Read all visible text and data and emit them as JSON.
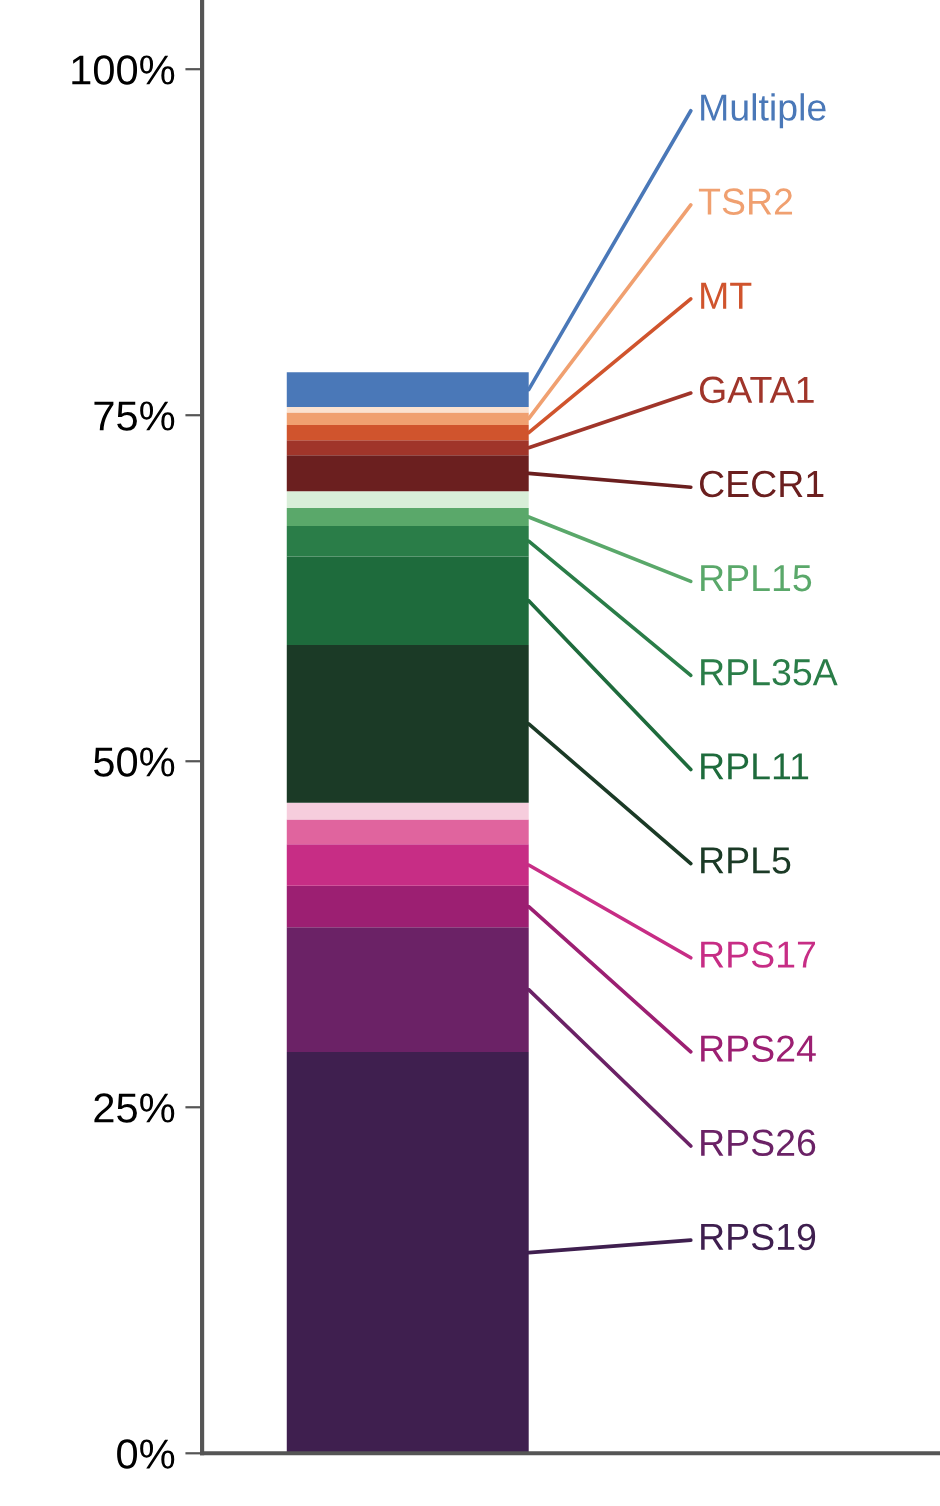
{
  "chart_data": {
    "type": "bar",
    "stacked": true,
    "categories": [
      null
    ],
    "series": [
      {
        "name": "RPS19",
        "color": "#3f1f4f",
        "values": [
          29
        ]
      },
      {
        "name": "RPS26",
        "color": "#6b2266",
        "values": [
          9
        ]
      },
      {
        "name": "RPS24",
        "color": "#9c1f72",
        "values": [
          3
        ]
      },
      {
        "name": "RPS17",
        "color": "#c72d85",
        "values": [
          3
        ]
      },
      {
        "color": "#e0649e",
        "values": [
          1.8
        ]
      },
      {
        "color": "#f6cddd",
        "values": [
          1.2
        ]
      },
      {
        "name": "RPL5",
        "color": "#1b3a26",
        "values": [
          11.4
        ]
      },
      {
        "name": "RPL11",
        "color": "#1e6b3c",
        "values": [
          6.4
        ]
      },
      {
        "name": "RPL35A",
        "color": "#2a7d48",
        "values": [
          2.2
        ]
      },
      {
        "name": "RPL15",
        "color": "#5aa86a",
        "values": [
          1.3
        ]
      },
      {
        "color": "#d8eed8",
        "values": [
          1.2
        ]
      },
      {
        "name": "CECR1",
        "color": "#6b1f1f",
        "values": [
          2.6
        ]
      },
      {
        "name": "GATA1",
        "color": "#a0352a",
        "values": [
          1.1
        ]
      },
      {
        "name": "MT",
        "color": "#d0542d",
        "values": [
          1.1
        ]
      },
      {
        "name": "TSR2",
        "color": "#f0a070",
        "values": [
          0.9
        ]
      },
      {
        "color": "#fbe2d0",
        "values": [
          0.4
        ]
      },
      {
        "name": "Multiple",
        "color": "#4a78b8",
        "values": [
          2.5
        ]
      }
    ],
    "ylim": [
      0,
      105
    ],
    "yticks": [
      {
        "value": 0,
        "label": "0%"
      },
      {
        "value": 25,
        "label": "25%"
      },
      {
        "value": 50,
        "label": "50%"
      },
      {
        "value": 75,
        "label": "75%"
      },
      {
        "value": 100,
        "label": "100%"
      }
    ],
    "grid": false,
    "legend": "right"
  }
}
